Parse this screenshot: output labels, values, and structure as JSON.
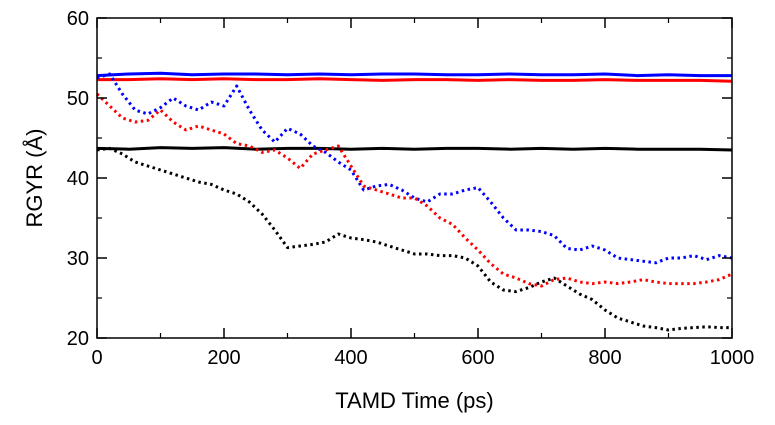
{
  "chart_data": {
    "type": "line",
    "xlabel": "TAMD Time (ps)",
    "ylabel": "RGYR (Å)",
    "xlim": [
      0,
      1000
    ],
    "ylim": [
      20,
      60
    ],
    "xticks": [
      0,
      200,
      400,
      600,
      800,
      1000
    ],
    "yticks": [
      20,
      30,
      40,
      50,
      60
    ],
    "grid": false,
    "legend": "none",
    "series": [
      {
        "color": "#0000ff",
        "style": "solid",
        "x": [
          0,
          50,
          100,
          150,
          200,
          250,
          300,
          350,
          400,
          450,
          500,
          550,
          600,
          650,
          700,
          750,
          800,
          850,
          900,
          950,
          1000
        ],
        "y": [
          52.8,
          53.0,
          53.1,
          52.9,
          53.0,
          53.0,
          52.9,
          53.0,
          52.9,
          53.0,
          53.0,
          52.9,
          52.9,
          53.0,
          52.9,
          52.9,
          53.0,
          52.8,
          52.9,
          52.8,
          52.8
        ]
      },
      {
        "color": "#ff0000",
        "style": "solid",
        "x": [
          0,
          50,
          100,
          150,
          200,
          250,
          300,
          350,
          400,
          450,
          500,
          550,
          600,
          650,
          700,
          750,
          800,
          850,
          900,
          950,
          1000
        ],
        "y": [
          52.3,
          52.3,
          52.4,
          52.3,
          52.4,
          52.3,
          52.3,
          52.4,
          52.3,
          52.2,
          52.3,
          52.3,
          52.2,
          52.3,
          52.2,
          52.2,
          52.3,
          52.2,
          52.2,
          52.2,
          52.1
        ]
      },
      {
        "color": "#000000",
        "style": "solid",
        "x": [
          0,
          50,
          100,
          150,
          200,
          250,
          300,
          350,
          400,
          450,
          500,
          550,
          600,
          650,
          700,
          750,
          800,
          850,
          900,
          950,
          1000
        ],
        "y": [
          43.7,
          43.6,
          43.8,
          43.7,
          43.8,
          43.6,
          43.7,
          43.7,
          43.6,
          43.7,
          43.6,
          43.7,
          43.7,
          43.6,
          43.7,
          43.6,
          43.7,
          43.6,
          43.6,
          43.6,
          43.5
        ]
      },
      {
        "color": "#0000ff",
        "style": "dotted",
        "x": [
          0,
          20,
          40,
          60,
          80,
          100,
          120,
          140,
          160,
          180,
          200,
          220,
          240,
          260,
          280,
          300,
          320,
          340,
          360,
          380,
          400,
          420,
          440,
          460,
          480,
          500,
          520,
          540,
          560,
          580,
          600,
          620,
          640,
          660,
          680,
          700,
          720,
          740,
          760,
          780,
          800,
          820,
          840,
          860,
          880,
          900,
          920,
          940,
          960,
          980,
          1000
        ],
        "y": [
          52.5,
          53.0,
          50.5,
          48.5,
          48.0,
          48.8,
          50.0,
          49.0,
          48.5,
          49.5,
          49.0,
          51.5,
          48.5,
          46.0,
          44.5,
          46.2,
          45.5,
          44.0,
          43.2,
          42.0,
          41.0,
          38.5,
          39.0,
          39.2,
          38.5,
          37.5,
          37.0,
          38.0,
          38.0,
          38.5,
          38.8,
          37.0,
          35.0,
          33.5,
          33.5,
          33.3,
          32.8,
          31.2,
          31.0,
          31.5,
          31.0,
          30.0,
          29.8,
          29.6,
          29.4,
          30.0,
          30.0,
          30.3,
          29.8,
          30.3,
          30.0
        ]
      },
      {
        "color": "#ff0000",
        "style": "dotted",
        "x": [
          0,
          20,
          40,
          60,
          80,
          100,
          120,
          140,
          160,
          180,
          200,
          220,
          240,
          260,
          280,
          300,
          320,
          340,
          360,
          380,
          400,
          420,
          440,
          460,
          480,
          500,
          520,
          540,
          560,
          580,
          600,
          620,
          640,
          660,
          680,
          700,
          720,
          740,
          760,
          780,
          800,
          820,
          840,
          860,
          880,
          900,
          920,
          940,
          960,
          980,
          1000
        ],
        "y": [
          50.5,
          49.0,
          47.5,
          47.0,
          47.2,
          48.5,
          47.0,
          46.0,
          46.5,
          46.0,
          45.5,
          44.3,
          44.0,
          43.2,
          43.5,
          42.5,
          41.2,
          43.0,
          43.5,
          44.0,
          41.5,
          39.0,
          38.5,
          38.0,
          37.5,
          37.5,
          36.5,
          35.0,
          34.2,
          32.5,
          31.0,
          29.3,
          28.0,
          27.5,
          26.8,
          26.5,
          27.3,
          27.5,
          27.0,
          26.8,
          27.0,
          26.8,
          27.0,
          27.3,
          27.0,
          26.8,
          26.8,
          26.8,
          27.0,
          27.3,
          28.0
        ]
      },
      {
        "color": "#000000",
        "style": "dotted",
        "x": [
          0,
          20,
          40,
          60,
          80,
          100,
          120,
          140,
          160,
          180,
          200,
          220,
          240,
          260,
          280,
          300,
          320,
          340,
          360,
          380,
          400,
          420,
          440,
          460,
          480,
          500,
          520,
          540,
          560,
          580,
          600,
          620,
          640,
          660,
          680,
          700,
          720,
          740,
          760,
          780,
          800,
          820,
          840,
          860,
          880,
          900,
          920,
          940,
          960,
          980,
          1000
        ],
        "y": [
          43.5,
          43.7,
          43.0,
          42.0,
          41.5,
          41.0,
          40.5,
          40.0,
          39.5,
          39.2,
          38.5,
          38.0,
          37.0,
          35.5,
          33.5,
          31.3,
          31.5,
          31.7,
          32.0,
          33.0,
          32.5,
          32.3,
          32.0,
          31.5,
          31.0,
          30.5,
          30.5,
          30.3,
          30.3,
          30.0,
          29.0,
          27.0,
          26.0,
          25.8,
          26.3,
          27.0,
          27.5,
          26.5,
          25.5,
          24.8,
          23.5,
          22.5,
          22.0,
          21.5,
          21.3,
          21.0,
          21.2,
          21.3,
          21.4,
          21.3,
          21.3
        ]
      }
    ]
  }
}
